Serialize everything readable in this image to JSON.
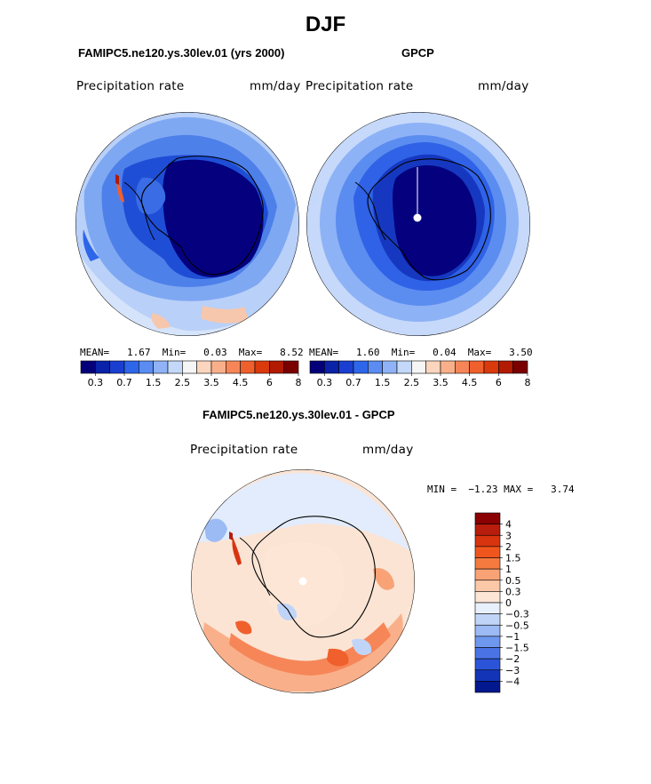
{
  "title": "DJF",
  "panels": [
    {
      "id": "model",
      "subtitle": "FAMIPC5.ne120.ys.30lev.01 (yrs 2000)",
      "left_label": "Precipitation rate",
      "right_label": "mm/day",
      "stats": "MEAN=   1.67  Min=   0.03  Max=   8.52"
    },
    {
      "id": "obs",
      "subtitle": "GPCP",
      "left_label": "Precipitation rate",
      "right_label": "mm/day",
      "stats": "MEAN=   1.60  Min=   0.04  Max=   3.50"
    },
    {
      "id": "diff",
      "subtitle": "FAMIPC5.ne120.ys.30lev.01 - GPCP",
      "left_label": "Precipitation rate",
      "right_label": "mm/day",
      "stats": "MIN =  −1.23 MAX =   3.74"
    }
  ],
  "colorbar_abs": {
    "colors": [
      "#03007a",
      "#0a22a8",
      "#1a3fd0",
      "#2e66ea",
      "#5a8cf2",
      "#8fb3f6",
      "#c4d8fa",
      "#f5f5f5",
      "#fbd5bd",
      "#f9b08a",
      "#f68658",
      "#f0602c",
      "#db3a0c",
      "#b21a02",
      "#7a0000"
    ],
    "labels": [
      "0.3",
      "0.7",
      "1.5",
      "2.5",
      "3.5",
      "4.5",
      "6",
      "8"
    ]
  },
  "colorbar_diff": {
    "colors": [
      "#8b0000",
      "#b81c0c",
      "#d83410",
      "#f0551e",
      "#f57a40",
      "#f8a275",
      "#fbc8a8",
      "#fde6d6",
      "#e8f0fc",
      "#c0d4f8",
      "#9cbaf4",
      "#6e98ee",
      "#4a74e6",
      "#2b54d8",
      "#1434b8",
      "#02188e"
    ],
    "labels": [
      "4",
      "3",
      "2",
      "1.5",
      "1",
      "0.5",
      "0.3",
      "0",
      "−0.3",
      "−0.5",
      "−1",
      "−1.5",
      "−2",
      "−3",
      "−4"
    ]
  },
  "chart_data": [
    {
      "type": "heatmap",
      "title": "FAMIPC5.ne120.ys.30lev.01 (yrs 2000)",
      "variable": "Precipitation rate",
      "units": "mm/day",
      "projection": "south polar stereographic",
      "season": "DJF",
      "mean": 1.67,
      "min": 0.03,
      "max": 8.52,
      "contour_levels": [
        0.3,
        0.7,
        1.5,
        2.5,
        3.5,
        4.5,
        6,
        8
      ]
    },
    {
      "type": "heatmap",
      "title": "GPCP",
      "variable": "Precipitation rate",
      "units": "mm/day",
      "projection": "south polar stereographic",
      "season": "DJF",
      "mean": 1.6,
      "min": 0.04,
      "max": 3.5,
      "contour_levels": [
        0.3,
        0.7,
        1.5,
        2.5,
        3.5,
        4.5,
        6,
        8
      ]
    },
    {
      "type": "heatmap",
      "title": "FAMIPC5.ne120.ys.30lev.01 - GPCP",
      "variable": "Precipitation rate",
      "units": "mm/day",
      "projection": "south polar stereographic",
      "season": "DJF",
      "min": -1.23,
      "max": 3.74,
      "contour_levels": [
        -4,
        -3,
        -2,
        -1.5,
        -1,
        -0.5,
        -0.3,
        0,
        0.3,
        0.5,
        1,
        1.5,
        2,
        3,
        4
      ]
    }
  ]
}
